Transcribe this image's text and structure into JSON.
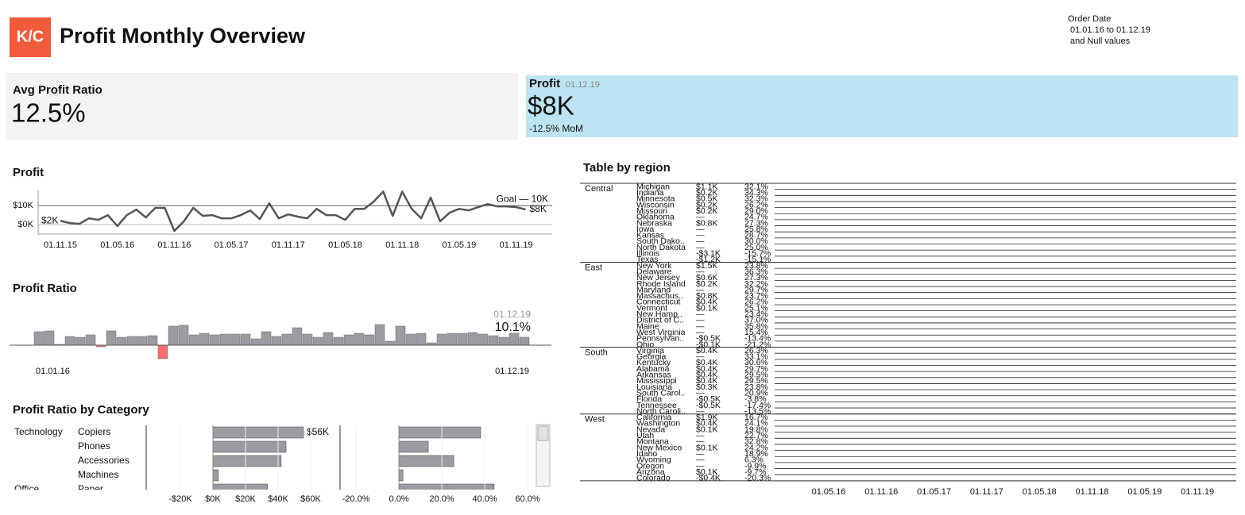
{
  "header": {
    "logo": "K/C",
    "title": "Profit Monthly Overview",
    "filter": {
      "label": "Order Date",
      "range": "01.01.16 to 01.12.19",
      "note": "and Null values"
    }
  },
  "kpis": {
    "avg_profit_ratio": {
      "label": "Avg Profit Ratio",
      "value": "12.5%"
    },
    "profit": {
      "label": "Profit",
      "date": "01.12.19",
      "value": "$8K",
      "change": "-12.5% MoM"
    }
  },
  "chart_data": [
    {
      "type": "line",
      "title": "Profit",
      "color": "#555555",
      "categories": [
        "01.11.15",
        null,
        null,
        null,
        null,
        null,
        "01.05.16",
        null,
        null,
        null,
        null,
        null,
        "01.11.16",
        null,
        null,
        null,
        null,
        null,
        "01.05.17",
        null,
        null,
        null,
        null,
        null,
        "01.11.17",
        null,
        null,
        null,
        null,
        null,
        "01.05.18",
        null,
        null,
        null,
        null,
        null,
        "01.11.18",
        null,
        null,
        null,
        null,
        null,
        "01.05.19",
        null,
        null,
        null,
        null,
        null,
        "01.11.19",
        null
      ],
      "values": [
        2000,
        800,
        400,
        3300,
        2500,
        5000,
        -800,
        5000,
        7900,
        3800,
        8800,
        8800,
        -3300,
        1700,
        8800,
        4600,
        5000,
        3300,
        3300,
        5000,
        7500,
        2900,
        11200,
        3300,
        5400,
        4200,
        3300,
        8300,
        5000,
        5000,
        2500,
        8300,
        8300,
        12100,
        17400,
        4600,
        17400,
        8300,
        3300,
        14200,
        1700,
        6300,
        8300,
        7500,
        9200,
        10800,
        9600,
        9600,
        9200,
        8000
      ],
      "value_labels": [
        "$2K",
        null,
        null,
        null,
        null,
        null,
        null,
        null,
        null,
        null,
        null,
        null,
        null,
        null,
        null,
        null,
        null,
        null,
        null,
        null,
        null,
        null,
        null,
        null,
        null,
        null,
        null,
        null,
        null,
        null,
        null,
        null,
        null,
        null,
        null,
        null,
        null,
        null,
        null,
        null,
        null,
        null,
        null,
        null,
        null,
        null,
        null,
        null,
        null,
        "$8K"
      ],
      "ylim": [
        -5000,
        18000
      ],
      "yticks": [
        {
          "value": 0,
          "label": "$0K"
        },
        {
          "value": 10000,
          "label": "$10K"
        }
      ],
      "goal": {
        "value": 10000,
        "label": "Goal — 10K"
      },
      "grid": true
    },
    {
      "type": "bar",
      "title": "Profit Ratio",
      "positive_color": "#9a9ca2",
      "negative_color": "#f4706c",
      "categories": [
        "01.01.16",
        null,
        null,
        null,
        null,
        null,
        null,
        null,
        null,
        null,
        null,
        null,
        null,
        null,
        null,
        null,
        null,
        null,
        null,
        null,
        null,
        null,
        null,
        null,
        null,
        null,
        null,
        null,
        null,
        null,
        null,
        null,
        null,
        null,
        null,
        null,
        null,
        null,
        null,
        null,
        null,
        null,
        null,
        null,
        null,
        null,
        null,
        "01.12.19"
      ],
      "values": [
        17,
        18,
        1,
        11,
        10,
        13,
        -2,
        18,
        10,
        11,
        11,
        12,
        -17,
        24,
        25,
        13,
        15,
        13,
        14,
        14,
        14,
        8,
        17,
        11,
        14,
        22,
        14,
        10,
        16,
        10,
        13,
        15,
        13,
        26,
        5,
        24,
        14,
        15,
        3,
        14,
        15,
        15,
        16,
        14,
        12,
        10,
        15,
        10.1
      ],
      "value_labels": [
        null,
        null,
        null,
        null,
        null,
        null,
        null,
        null,
        null,
        null,
        null,
        null,
        null,
        null,
        null,
        null,
        null,
        null,
        null,
        null,
        null,
        null,
        null,
        null,
        null,
        null,
        null,
        null,
        null,
        null,
        null,
        null,
        null,
        null,
        null,
        null,
        null,
        null,
        null,
        null,
        null,
        null,
        null,
        null,
        null,
        null,
        null,
        "10.1%"
      ]
    },
    {
      "type": "hbar",
      "title": "Profit Ratio by Category",
      "color": "#9a9ca2",
      "groups": [
        {
          "name": "Technology",
          "categories": [
            "Copiers",
            "Phones",
            "Accessories",
            "Machines"
          ]
        },
        {
          "name": "Office",
          "categories": [
            "Paper"
          ]
        }
      ],
      "panels": [
        {
          "values": [
            55600,
            44900,
            41900,
            3400,
            33600
          ],
          "value_labels": [
            "$56K",
            null,
            null,
            null,
            null
          ],
          "xlim": [
            -40000,
            76600
          ],
          "xticks": [
            {
              "value": -20000,
              "label": "-$20K"
            },
            {
              "value": 0,
              "label": "$0K"
            },
            {
              "value": 20000,
              "label": "$20K"
            },
            {
              "value": 40000,
              "label": "$40K"
            },
            {
              "value": 60000,
              "label": "$60K"
            }
          ]
        },
        {
          "values": [
            38.1,
            13.7,
            25.6,
            1.9,
            44.4
          ],
          "xlim": [
            -26.7,
            62.2
          ],
          "xticks": [
            {
              "value": -20,
              "label": "-20.0%"
            },
            {
              "value": 0,
              "label": "0.0%"
            },
            {
              "value": 20,
              "label": "20.0%"
            },
            {
              "value": 40,
              "label": "40.0%"
            },
            {
              "value": 60,
              "label": "60.0%"
            }
          ]
        }
      ]
    }
  ],
  "table": {
    "title": "Table by region",
    "groups": [
      {
        "region": "Central",
        "rows": [
          [
            "Michigan",
            "$1.1K",
            "32.1%"
          ],
          [
            "Indiana",
            "$0.2K",
            "34.3%"
          ],
          [
            "Minnesota",
            "$0.5K",
            "32.3%"
          ],
          [
            "Wisconsin",
            "$0.2K",
            "26.2%"
          ],
          [
            "Missouri",
            "$0.2K",
            "29.0%"
          ],
          [
            "Oklahoma",
            "—",
            "24.7%"
          ],
          [
            "Nebraska",
            "$0.8K",
            "27.3%"
          ],
          [
            "Iowa",
            "—",
            "25.8%"
          ],
          [
            "Kansas",
            "—",
            "28.7%"
          ],
          [
            "South Dako..",
            "—",
            "30.0%"
          ],
          [
            "North Dakota",
            "—",
            "25.0%"
          ],
          [
            "Illinois",
            "-$3.1K",
            "-15.7%"
          ],
          [
            "Texas",
            "-$1.2K",
            "-15.1%"
          ]
        ]
      },
      {
        "region": "East",
        "rows": [
          [
            "New York",
            "$1.5K",
            "23.8%"
          ],
          [
            "Delaware",
            "—",
            "36.3%"
          ],
          [
            "New Jersey",
            "$0.6K",
            "27.3%"
          ],
          [
            "Rhode Island",
            "$0.2K",
            "32.2%"
          ],
          [
            "Maryland",
            "—",
            "29.7%"
          ],
          [
            "Massachus..",
            "$0.8K",
            "23.7%"
          ],
          [
            "Connecticut",
            "$0.4K",
            "26.2%"
          ],
          [
            "Vermont",
            "$0.1K",
            "25.1%"
          ],
          [
            "New Hamp..",
            "—",
            "23.4%"
          ],
          [
            "District of C..",
            "—",
            "37.0%"
          ],
          [
            "Maine",
            "—",
            "35.8%"
          ],
          [
            "West Virginia",
            "—",
            "15.4%"
          ],
          [
            "Pennsylvan..",
            "-$0.5K",
            "-13.4%"
          ],
          [
            "Ohio",
            "-$0.1K",
            "-21.2%"
          ]
        ]
      },
      {
        "region": "South",
        "rows": [
          [
            "Virginia",
            "$0.4K",
            "26.3%"
          ],
          [
            "Georgia",
            "—",
            "33.1%"
          ],
          [
            "Kentucky",
            "$0.4K",
            "30.6%"
          ],
          [
            "Alabama",
            "$0.4K",
            "29.7%"
          ],
          [
            "Arkansas",
            "$0.4K",
            "29.5%"
          ],
          [
            "Mississippi",
            "$0.4K",
            "29.5%"
          ],
          [
            "Louisiana",
            "$0.3K",
            "23.8%"
          ],
          [
            "South Carol..",
            "—",
            "20.9%"
          ],
          [
            "Florida",
            "-$0.5K",
            "-3.8%"
          ],
          [
            "Tennessee",
            "-$0.5K",
            "-17.4%"
          ],
          [
            "North Caroli..",
            "—",
            "-13.5%"
          ]
        ]
      },
      {
        "region": "West",
        "rows": [
          [
            "California",
            "$1.9K",
            "16.7%"
          ],
          [
            "Washington",
            "$0.4K",
            "24.1%"
          ],
          [
            "Nevada",
            "$0.1K",
            "19.8%"
          ],
          [
            "Utah",
            "—",
            "22.7%"
          ],
          [
            "Montana",
            "—",
            "32.8%"
          ],
          [
            "New Mexico",
            "$0.1K",
            "24.2%"
          ],
          [
            "Idaho",
            "—",
            "18.9%"
          ],
          [
            "Wyoming",
            "—",
            "6.3%"
          ],
          [
            "Oregon",
            "—",
            "-9.9%"
          ],
          [
            "Arizona",
            "$0.1K",
            "-9.7%"
          ],
          [
            "Colorado",
            "-$0.4K",
            "-20.3%"
          ]
        ]
      }
    ],
    "x_labels": [
      "01.05.16",
      "01.11.16",
      "01.05.17",
      "01.11.17",
      "01.05.18",
      "01.11.18",
      "01.05.19",
      "01.11.19"
    ]
  }
}
